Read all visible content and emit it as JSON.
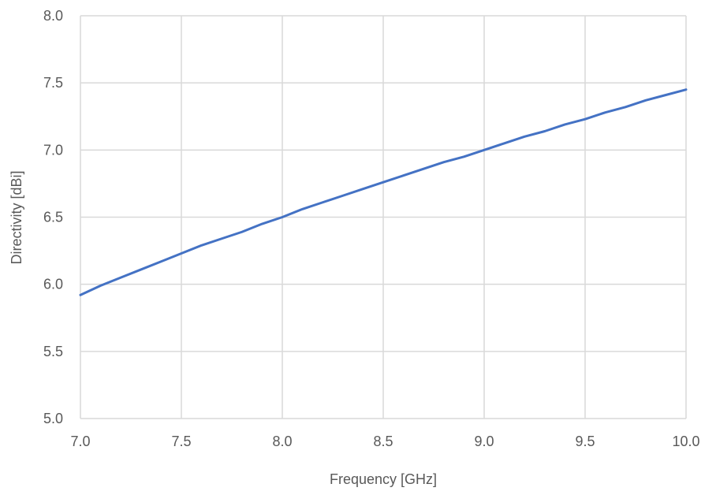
{
  "chart_data": {
    "type": "line",
    "title": "",
    "xlabel": "Frequency [GHz]",
    "ylabel": "Directivity [dBi]",
    "xlim": [
      7.0,
      10.0
    ],
    "ylim": [
      5.0,
      8.0
    ],
    "x_ticks": [
      "7.0",
      "7.5",
      "8.0",
      "8.5",
      "9.0",
      "9.5",
      "10.0"
    ],
    "y_ticks": [
      "5.0",
      "5.5",
      "6.0",
      "6.5",
      "7.0",
      "7.5",
      "8.0"
    ],
    "grid": true,
    "legend": "none",
    "series": [
      {
        "color": "#4472c4",
        "x": [
          7.0,
          7.1,
          7.2,
          7.3,
          7.4,
          7.5,
          7.6,
          7.7,
          7.8,
          7.9,
          8.0,
          8.1,
          8.2,
          8.3,
          8.4,
          8.5,
          8.6,
          8.7,
          8.8,
          8.9,
          9.0,
          9.1,
          9.2,
          9.3,
          9.4,
          9.5,
          9.6,
          9.7,
          9.8,
          9.9,
          10.0
        ],
        "y": [
          5.92,
          5.99,
          6.05,
          6.11,
          6.17,
          6.23,
          6.29,
          6.34,
          6.39,
          6.45,
          6.5,
          6.56,
          6.61,
          6.66,
          6.71,
          6.76,
          6.81,
          6.86,
          6.91,
          6.95,
          7.0,
          7.05,
          7.1,
          7.14,
          7.19,
          7.23,
          7.28,
          7.32,
          7.37,
          7.41,
          7.45
        ]
      }
    ]
  }
}
